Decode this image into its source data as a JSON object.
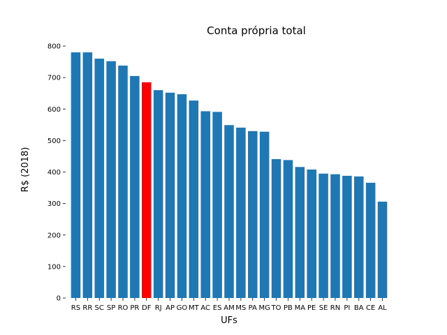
{
  "chart_data": {
    "type": "bar",
    "title": "Conta própria total",
    "xlabel": "UFs",
    "ylabel": "R$ (2018)",
    "ylim": [
      0,
      800
    ],
    "yticks": [
      0,
      100,
      200,
      300,
      400,
      500,
      600,
      700,
      800
    ],
    "grid": false,
    "categories": [
      "RS",
      "RR",
      "SC",
      "SP",
      "RO",
      "PR",
      "DF",
      "RJ",
      "AP",
      "GO",
      "MT",
      "AC",
      "ES",
      "AM",
      "MS",
      "PA",
      "MG",
      "TO",
      "PB",
      "MA",
      "PE",
      "SE",
      "RN",
      "PI",
      "BA",
      "CE",
      "AL"
    ],
    "values": [
      780,
      780,
      760,
      752,
      738,
      705,
      685,
      660,
      652,
      647,
      627,
      593,
      591,
      549,
      541,
      530,
      528,
      441,
      438,
      416,
      408,
      395,
      393,
      388,
      386,
      366,
      306
    ],
    "highlight": "DF",
    "colors": {
      "default": "#1f77b4",
      "highlight": "#ff0000"
    }
  }
}
